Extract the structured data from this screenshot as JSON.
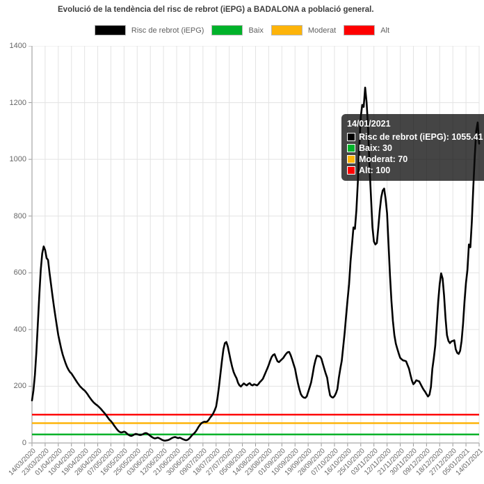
{
  "chart_data": {
    "type": "line",
    "title": "Evolució de la tendència del risc de rebrot (iEPG) a BADALONA a població general.",
    "start_date": "14/03/2020",
    "end_date": "14/01/2021",
    "x_tick_interval_days": 9,
    "categories": [
      "14/03/2020",
      "23/03/2020",
      "01/04/2020",
      "10/04/2020",
      "19/04/2020",
      "28/04/2020",
      "07/05/2020",
      "16/05/2020",
      "25/05/2020",
      "03/06/2020",
      "12/06/2020",
      "21/06/2020",
      "30/06/2020",
      "09/07/2020",
      "18/07/2020",
      "27/07/2020",
      "05/08/2020",
      "14/08/2020",
      "23/08/2020",
      "01/09/2020",
      "10/09/2020",
      "19/09/2020",
      "28/09/2020",
      "07/10/2020",
      "16/10/2020",
      "25/10/2020",
      "03/11/2020",
      "12/11/2020",
      "21/11/2020",
      "30/11/2020",
      "09/12/2020",
      "18/12/2020",
      "27/12/2020",
      "05/01/2021",
      "14/01/2021"
    ],
    "ylim": [
      0,
      1400
    ],
    "y_ticks": [
      0,
      200,
      400,
      600,
      800,
      1000,
      1200,
      1400
    ],
    "grid": true,
    "legend_position": "top",
    "series": [
      {
        "name": "Risc de rebrot (iEPG)",
        "color": "#000000",
        "sampling": "daily",
        "values": [
          150,
          185,
          240,
          320,
          420,
          520,
          610,
          668,
          693,
          680,
          652,
          645,
          600,
          560,
          520,
          482,
          447,
          413,
          380,
          356,
          332,
          312,
          296,
          281,
          268,
          258,
          250,
          245,
          237,
          229,
          221,
          213,
          206,
          199,
          194,
          189,
          185,
          179,
          172,
          164,
          157,
          150,
          144,
          139,
          135,
          131,
          126,
          121,
          115,
          109,
          103,
          96,
          89,
          82,
          77,
          71,
          63,
          56,
          49,
          43,
          39,
          37,
          38,
          40,
          38,
          33,
          29,
          26,
          25,
          27,
          30,
          32,
          31,
          29,
          28,
          29,
          31,
          34,
          35,
          33,
          29,
          25,
          21,
          18,
          16,
          17,
          19,
          17,
          14,
          11,
          9,
          8,
          9,
          10,
          12,
          15,
          18,
          20,
          21,
          19,
          17,
          19,
          17,
          14,
          12,
          10,
          10,
          13,
          18,
          24,
          30,
          34,
          40,
          48,
          57,
          64,
          70,
          73,
          75,
          74,
          76,
          82,
          90,
          96,
          104,
          115,
          128,
          160,
          200,
          245,
          290,
          330,
          352,
          356,
          340,
          315,
          290,
          268,
          250,
          238,
          228,
          212,
          203,
          199,
          205,
          210,
          206,
          203,
          208,
          211,
          205,
          203,
          207,
          205,
          203,
          208,
          215,
          220,
          226,
          238,
          250,
          262,
          275,
          290,
          303,
          310,
          313,
          300,
          288,
          285,
          290,
          295,
          300,
          308,
          315,
          320,
          321,
          310,
          295,
          278,
          262,
          235,
          210,
          189,
          172,
          164,
          160,
          159,
          164,
          180,
          196,
          213,
          240,
          270,
          292,
          308,
          306,
          305,
          298,
          280,
          262,
          245,
          230,
          195,
          168,
          162,
          160,
          165,
          175,
          190,
          230,
          262,
          290,
          340,
          390,
          450,
          507,
          560,
          640,
          700,
          760,
          755,
          820,
          920,
          1050,
          1150,
          1192,
          1185,
          1253,
          1200,
          1112,
          973,
          867,
          760,
          710,
          700,
          705,
          760,
          820,
          866,
          890,
          897,
          860,
          810,
          700,
          590,
          500,
          430,
          380,
          350,
          332,
          315,
          300,
          295,
          291,
          290,
          288,
          275,
          262,
          240,
          220,
          207,
          213,
          221,
          219,
          217,
          207,
          197,
          188,
          181,
          172,
          164,
          170,
          197,
          262,
          300,
          344,
          420,
          500,
          560,
          598,
          580,
          520,
          440,
          380,
          360,
          352,
          358,
          360,
          362,
          330,
          318,
          314,
          325,
          360,
          420,
          500,
          565,
          610,
          700,
          690,
          780,
          900,
          1010,
          1100,
          1130,
          1055.41
        ]
      },
      {
        "name": "Baix",
        "color": "#00b22a",
        "constant": 30
      },
      {
        "name": "Moderat",
        "color": "#fdb40a",
        "constant": 70
      },
      {
        "name": "Alt",
        "color": "#fe0000",
        "constant": 100
      }
    ]
  },
  "tooltip": {
    "title": "14/01/2021",
    "rows": [
      {
        "label": "Risc de rebrot (iEPG)",
        "value": "1055.41",
        "color": "#000000"
      },
      {
        "label": "Baix",
        "value": "30",
        "color": "#00b22a"
      },
      {
        "label": "Moderat",
        "value": "70",
        "color": "#fdb40a"
      },
      {
        "label": "Alt",
        "value": "100",
        "color": "#fe0000"
      }
    ]
  },
  "style_colors": {
    "grid": "#e3e3e3",
    "axis": "#b5b5b5",
    "tick": "#999999",
    "text": "#666666",
    "title_text": "#3d3d3d"
  }
}
